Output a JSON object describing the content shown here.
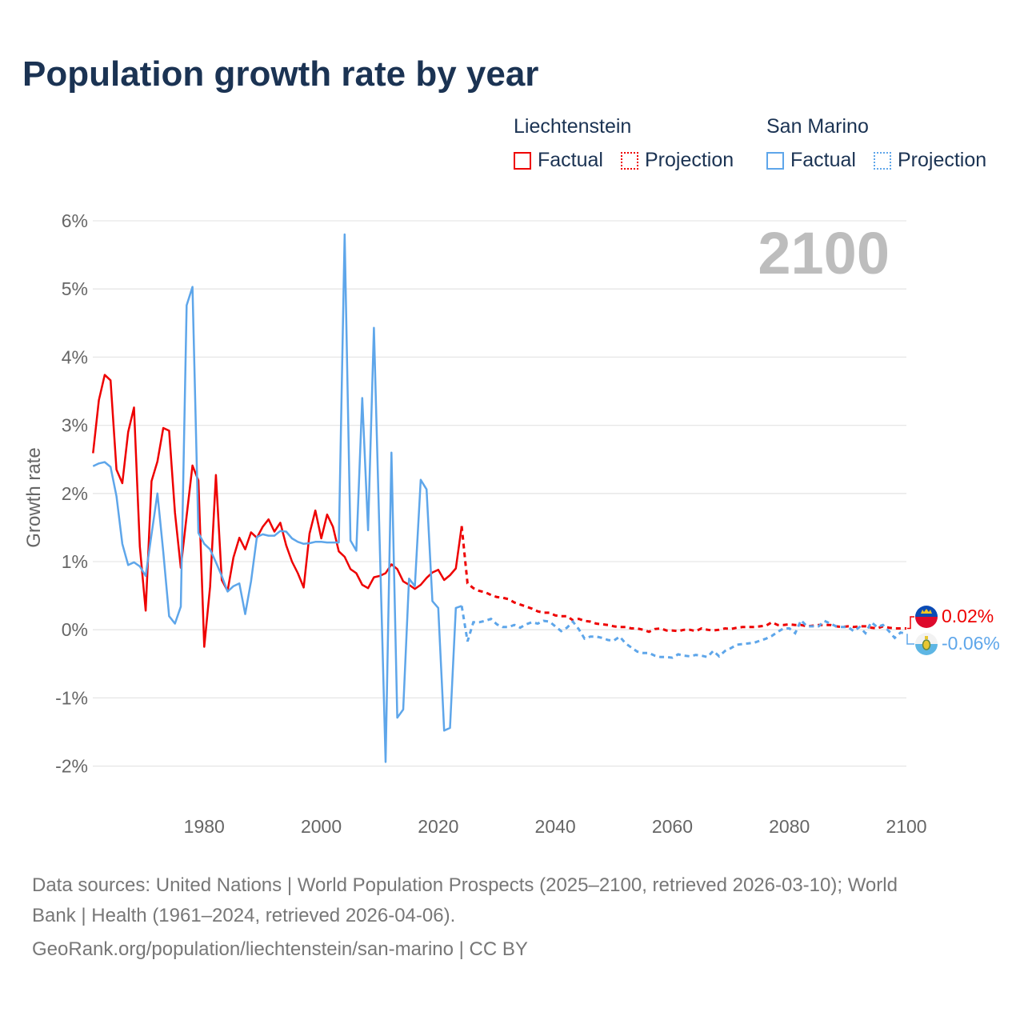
{
  "title": "Population growth rate by year",
  "legend": {
    "groups": [
      {
        "name": "Liechtenstein",
        "factual_label": "Factual",
        "projection_label": "Projection",
        "color": "#ee0000"
      },
      {
        "name": "San Marino",
        "factual_label": "Factual",
        "projection_label": "Projection",
        "color": "#5ea6ea"
      }
    ]
  },
  "year_watermark": "2100",
  "end_labels": {
    "liechtenstein": "0.02%",
    "san_marino": "-0.06%"
  },
  "footer": {
    "line1": "Data sources: United Nations | World Population Prospects (2025–2100, retrieved 2026-03-10); World",
    "line2": "Bank | Health (1961–2024, retrieved 2026-04-06).",
    "line3": "GeoRank.org/population/liechtenstein/san-marino | CC BY"
  },
  "chart_data": {
    "type": "line",
    "title": "Population growth rate by year",
    "xlabel": "",
    "ylabel": "Growth rate",
    "xlim": [
      1961,
      2100
    ],
    "ylim": [
      -2,
      6
    ],
    "x_ticks": [
      1980,
      2000,
      2020,
      2040,
      2060,
      2080,
      2100
    ],
    "x_tick_labels": [
      "1980",
      "2000",
      "2020",
      "2040",
      "2060",
      "2080",
      "2100"
    ],
    "y_ticks": [
      -2,
      -1,
      0,
      1,
      2,
      3,
      4,
      5,
      6
    ],
    "y_tick_labels": [
      "-2%",
      "-1%",
      "0%",
      "1%",
      "2%",
      "3%",
      "4%",
      "5%",
      "6%"
    ],
    "grid": true,
    "legend_position": "top-right",
    "factual_start_year": 1961,
    "projection_start_year": 2025,
    "series": [
      {
        "name": "Liechtenstein",
        "color": "#ee0000",
        "factual": [
          2.59,
          3.37,
          3.74,
          3.66,
          2.35,
          2.15,
          2.9,
          3.26,
          1.22,
          0.28,
          2.18,
          2.47,
          2.96,
          2.92,
          1.72,
          0.91,
          1.67,
          2.41,
          2.19,
          -0.25,
          0.63,
          2.27,
          0.73,
          0.57,
          1.06,
          1.35,
          1.18,
          1.43,
          1.35,
          1.51,
          1.62,
          1.44,
          1.57,
          1.24,
          1.0,
          0.83,
          0.62,
          1.41,
          1.75,
          1.34,
          1.69,
          1.51,
          1.15,
          1.07,
          0.89,
          0.83,
          0.66,
          0.61,
          0.77,
          0.79,
          0.83,
          0.96,
          0.89,
          0.71,
          0.66,
          0.6,
          0.66,
          0.76,
          0.84,
          0.88,
          0.73,
          0.8,
          0.9,
          1.52
        ],
        "projection": [
          0.68,
          0.61,
          0.57,
          0.55,
          0.51,
          0.48,
          0.47,
          0.45,
          0.4,
          0.37,
          0.34,
          0.31,
          0.27,
          0.25,
          0.25,
          0.21,
          0.2,
          0.2,
          0.14,
          0.16,
          0.13,
          0.12,
          0.09,
          0.08,
          0.07,
          0.05,
          0.04,
          0.04,
          0.02,
          0.02,
          0.0,
          -0.03,
          0.01,
          0.02,
          -0.01,
          -0.01,
          -0.02,
          0.0,
          0.0,
          -0.02,
          0.02,
          0.0,
          -0.01,
          0.0,
          0.02,
          0.01,
          0.03,
          0.04,
          0.04,
          0.04,
          0.05,
          0.06,
          0.11,
          0.07,
          0.07,
          0.08,
          0.07,
          0.07,
          0.05,
          0.06,
          0.07,
          0.07,
          0.07,
          0.05,
          0.04,
          0.05,
          0.04,
          0.05,
          0.05,
          0.03,
          0.02,
          0.05,
          0.03,
          0.02,
          0.02,
          0.02
        ]
      },
      {
        "name": "San Marino",
        "color": "#5ea6ea",
        "factual": [
          2.4,
          2.44,
          2.46,
          2.39,
          1.96,
          1.26,
          0.95,
          0.99,
          0.93,
          0.79,
          1.4,
          2.0,
          1.14,
          0.2,
          0.09,
          0.34,
          4.76,
          5.03,
          1.42,
          1.26,
          1.18,
          0.99,
          0.79,
          0.56,
          0.64,
          0.68,
          0.23,
          0.71,
          1.36,
          1.4,
          1.38,
          1.38,
          1.45,
          1.44,
          1.34,
          1.29,
          1.26,
          1.27,
          1.29,
          1.29,
          1.28,
          1.28,
          1.28,
          5.8,
          1.31,
          1.16,
          3.4,
          1.46,
          4.43,
          1.25,
          -1.94,
          2.6,
          -1.29,
          -1.17,
          0.75,
          0.64,
          2.2,
          2.06,
          0.42,
          0.32,
          -1.48,
          -1.44,
          0.32,
          0.35
        ],
        "projection": [
          -0.17,
          0.11,
          0.11,
          0.13,
          0.16,
          0.08,
          0.04,
          0.04,
          0.07,
          0.03,
          0.08,
          0.11,
          0.09,
          0.13,
          0.12,
          0.05,
          -0.02,
          0.03,
          0.12,
          0.01,
          -0.13,
          -0.1,
          -0.1,
          -0.12,
          -0.15,
          -0.16,
          -0.1,
          -0.2,
          -0.26,
          -0.32,
          -0.34,
          -0.34,
          -0.38,
          -0.4,
          -0.4,
          -0.41,
          -0.36,
          -0.38,
          -0.39,
          -0.37,
          -0.38,
          -0.4,
          -0.31,
          -0.39,
          -0.31,
          -0.27,
          -0.22,
          -0.21,
          -0.2,
          -0.19,
          -0.16,
          -0.13,
          -0.09,
          -0.03,
          0.02,
          0.02,
          -0.05,
          0.14,
          0.05,
          0.05,
          0.05,
          0.13,
          0.09,
          0.05,
          0.04,
          0.04,
          -0.02,
          0.04,
          -0.05,
          0.11,
          0.04,
          0.07,
          -0.02,
          -0.12,
          -0.04,
          -0.06
        ]
      }
    ]
  }
}
